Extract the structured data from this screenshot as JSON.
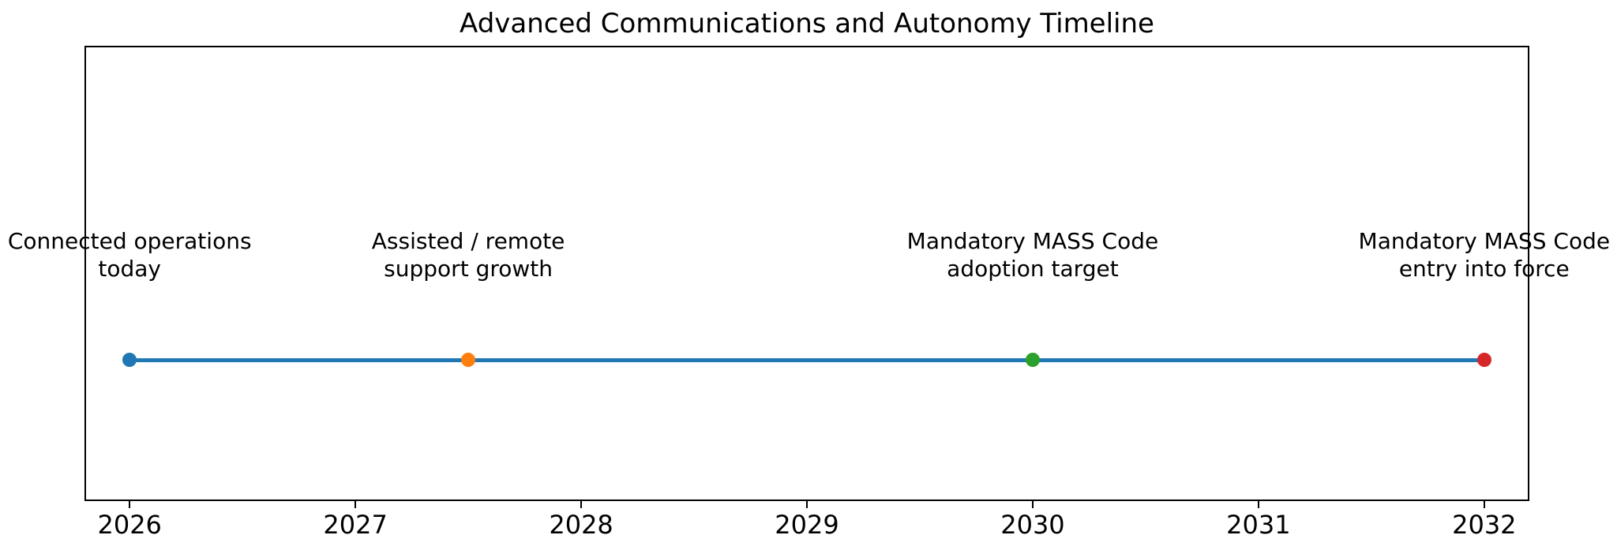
{
  "chart_data": {
    "type": "line",
    "title": "Advanced Communications and Autonomy Timeline",
    "xlabel": "",
    "ylabel": "",
    "xlim": [
      2025.8,
      2032.2
    ],
    "x_ticks": [
      "2026",
      "2027",
      "2028",
      "2029",
      "2030",
      "2031",
      "2032"
    ],
    "x_tick_values": [
      2026,
      2027,
      2028,
      2029,
      2030,
      2031,
      2032
    ],
    "grid": false,
    "legend": null,
    "background_color": "#ffffff",
    "axes_border_color": "#000000",
    "line_color": "#1f77b4",
    "line_span": [
      2026,
      2032
    ],
    "events": [
      {
        "x": 2026,
        "label_lines": [
          "Connected operations",
          "today"
        ],
        "color": "#1f77b4"
      },
      {
        "x": 2027.5,
        "label_lines": [
          "Assisted / remote",
          "support growth"
        ],
        "color": "#ff7f0e"
      },
      {
        "x": 2030,
        "label_lines": [
          "Mandatory MASS Code",
          "adoption target"
        ],
        "color": "#2ca02c"
      },
      {
        "x": 2032,
        "label_lines": [
          "Mandatory MASS Code",
          "entry into force"
        ],
        "color": "#d62728"
      }
    ]
  }
}
